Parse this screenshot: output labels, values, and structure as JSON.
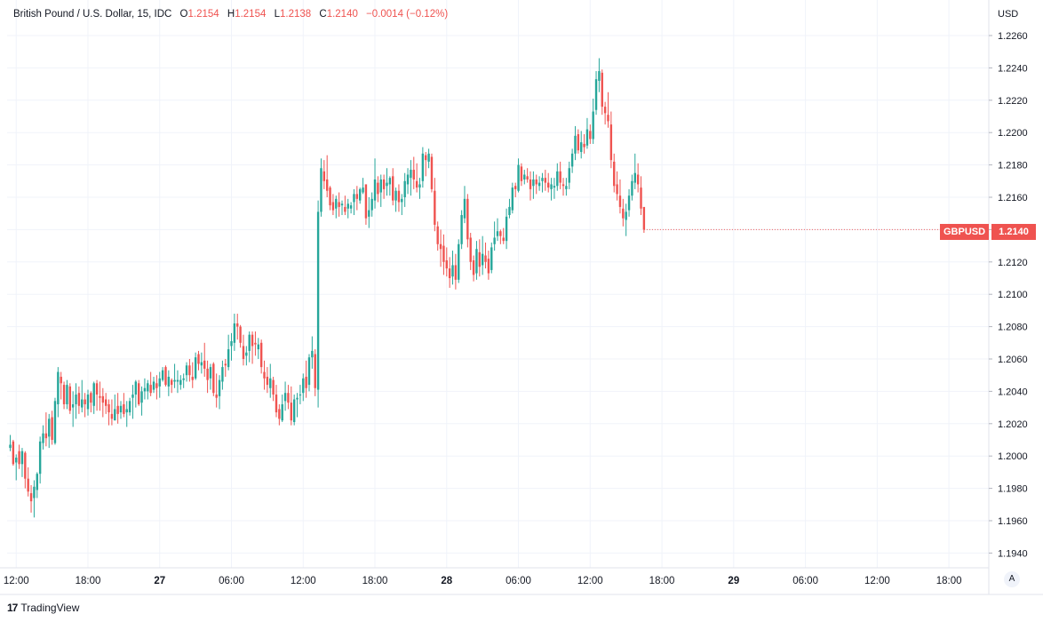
{
  "legend": {
    "title": "British Pound / U.S. Dollar, 15, IDC",
    "open_label": "O",
    "open_value": "1.2154",
    "high_label": "H",
    "high_value": "1.2154",
    "low_label": "L",
    "low_value": "1.2138",
    "close_label": "C",
    "close_value": "1.2140",
    "change": "−0.0014 (−0.12%)"
  },
  "axis": {
    "currency": "USD"
  },
  "price_tag": {
    "symbol": "GBPUSD",
    "price": "1.2140"
  },
  "auto_scale_label": "A",
  "brand": {
    "logo": "17",
    "name": "TradingView"
  },
  "colors": {
    "up": "#26a69a",
    "down": "#ef5350",
    "grid": "#f0f3fa",
    "text": "#131722"
  },
  "chart_data": {
    "type": "candlestick",
    "title": "British Pound / U.S. Dollar, 15, IDC",
    "ylim": [
      1.193,
      1.227
    ],
    "y_ticks": [
      "1.2260",
      "1.2240",
      "1.2220",
      "1.2200",
      "1.2180",
      "1.2160",
      "1.2140",
      "1.2120",
      "1.2100",
      "1.2080",
      "1.2060",
      "1.2040",
      "1.2020",
      "1.2000",
      "1.1980",
      "1.1960",
      "1.1940"
    ],
    "x_ticks": [
      {
        "label": "12:00",
        "bold": false,
        "idx": 2
      },
      {
        "label": "18:00",
        "bold": false,
        "idx": 26
      },
      {
        "label": "27",
        "bold": true,
        "idx": 50
      },
      {
        "label": "06:00",
        "bold": false,
        "idx": 74
      },
      {
        "label": "12:00",
        "bold": false,
        "idx": 98
      },
      {
        "label": "18:00",
        "bold": false,
        "idx": 122
      },
      {
        "label": "28",
        "bold": true,
        "idx": 146
      },
      {
        "label": "06:00",
        "bold": false,
        "idx": 170
      },
      {
        "label": "12:00",
        "bold": false,
        "idx": 194
      },
      {
        "label": "18:00",
        "bold": false,
        "idx": 218
      },
      {
        "label": "29",
        "bold": true,
        "idx": 242
      },
      {
        "label": "06:00",
        "bold": false,
        "idx": 266
      },
      {
        "label": "12:00",
        "bold": false,
        "idx": 290
      },
      {
        "label": "18:00",
        "bold": false,
        "idx": 314
      }
    ],
    "last_price": 1.214,
    "candles": [
      [
        1.2005,
        1.2013,
        1.2003,
        1.2007
      ],
      [
        1.2009,
        1.201,
        1.1994,
        1.1995
      ],
      [
        1.1996,
        1.2001,
        1.1985,
        1.1999
      ],
      [
        1.2003,
        1.2007,
        1.1992,
        1.1995
      ],
      [
        1.1995,
        1.2005,
        1.1987,
        1.2003
      ],
      [
        1.2002,
        1.2003,
        1.198,
        1.1986
      ],
      [
        1.1986,
        1.1993,
        1.1975,
        1.1978
      ],
      [
        1.1977,
        1.1982,
        1.1965,
        1.1972
      ],
      [
        1.1974,
        1.1985,
        1.1962,
        1.1981
      ],
      [
        1.1979,
        1.199,
        1.1974,
        1.1989
      ],
      [
        1.1989,
        1.2012,
        1.1983,
        1.2009
      ],
      [
        1.2008,
        1.2019,
        1.2004,
        1.2014
      ],
      [
        1.2014,
        1.2027,
        1.2006,
        1.2011
      ],
      [
        1.2012,
        1.2026,
        1.2005,
        1.2023
      ],
      [
        1.2024,
        1.2028,
        1.2007,
        1.201
      ],
      [
        1.2008,
        1.2036,
        1.2007,
        1.2034
      ],
      [
        1.2032,
        1.2055,
        1.2024,
        1.2052
      ],
      [
        1.2049,
        1.2052,
        1.2035,
        1.2045
      ],
      [
        1.2044,
        1.2046,
        1.2029,
        1.2032
      ],
      [
        1.2032,
        1.2047,
        1.2029,
        1.2044
      ],
      [
        1.2043,
        1.2045,
        1.2026,
        1.2028
      ],
      [
        1.203,
        1.204,
        1.2018,
        1.2032
      ],
      [
        1.2032,
        1.2045,
        1.2023,
        1.2038
      ],
      [
        1.2039,
        1.2043,
        1.2026,
        1.2031
      ],
      [
        1.203,
        1.2047,
        1.2027,
        1.2035
      ],
      [
        1.2035,
        1.2039,
        1.2024,
        1.2032
      ],
      [
        1.2029,
        1.2041,
        1.2025,
        1.2038
      ],
      [
        1.2039,
        1.204,
        1.2027,
        1.2033
      ],
      [
        1.2031,
        1.2046,
        1.2026,
        1.2045
      ],
      [
        1.2045,
        1.2047,
        1.2028,
        1.2038
      ],
      [
        1.2037,
        1.2046,
        1.2028,
        1.2036
      ],
      [
        1.2037,
        1.2042,
        1.2024,
        1.2033
      ],
      [
        1.2035,
        1.2039,
        1.2026,
        1.2031
      ],
      [
        1.2032,
        1.2035,
        1.2019,
        1.2027
      ],
      [
        1.2026,
        1.2035,
        1.2019,
        1.2023
      ],
      [
        1.2022,
        1.2038,
        1.2022,
        1.2029
      ],
      [
        1.2031,
        1.2039,
        1.202,
        1.2026
      ],
      [
        1.2027,
        1.2034,
        1.2023,
        1.2031
      ],
      [
        1.2032,
        1.2039,
        1.2024,
        1.2026
      ],
      [
        1.2027,
        1.2034,
        1.2018,
        1.2029
      ],
      [
        1.2027,
        1.2036,
        1.2025,
        1.2034
      ],
      [
        1.2036,
        1.2044,
        1.2023,
        1.2038
      ],
      [
        1.2038,
        1.2047,
        1.203,
        1.2046
      ],
      [
        1.2045,
        1.2047,
        1.2031,
        1.2032
      ],
      [
        1.2033,
        1.2043,
        1.2025,
        1.204
      ],
      [
        1.204,
        1.2048,
        1.2035,
        1.2042
      ],
      [
        1.204,
        1.2047,
        1.2035,
        1.2045
      ],
      [
        1.2044,
        1.2052,
        1.2037,
        1.2039
      ],
      [
        1.2041,
        1.2049,
        1.2039,
        1.2046
      ],
      [
        1.2045,
        1.205,
        1.2035,
        1.2042
      ],
      [
        1.2043,
        1.2052,
        1.2036,
        1.2048
      ],
      [
        1.2047,
        1.2055,
        1.2046,
        1.2053
      ],
      [
        1.2055,
        1.2056,
        1.2043,
        1.2044
      ],
      [
        1.2043,
        1.2053,
        1.2037,
        1.2049
      ],
      [
        1.2047,
        1.2048,
        1.2039,
        1.2044
      ],
      [
        1.2046,
        1.2057,
        1.2042,
        1.2047
      ],
      [
        1.2046,
        1.2053,
        1.2039,
        1.2047
      ],
      [
        1.2044,
        1.205,
        1.2041,
        1.2047
      ],
      [
        1.2047,
        1.2051,
        1.2042,
        1.2048
      ],
      [
        1.205,
        1.2058,
        1.2046,
        1.2056
      ],
      [
        1.2056,
        1.206,
        1.2046,
        1.205
      ],
      [
        1.2049,
        1.2058,
        1.2042,
        1.2047
      ],
      [
        1.2048,
        1.2064,
        1.2047,
        1.2061
      ],
      [
        1.2063,
        1.2065,
        1.2053,
        1.2057
      ],
      [
        1.2056,
        1.2064,
        1.2051,
        1.2058
      ],
      [
        1.2059,
        1.207,
        1.2049,
        1.2054
      ],
      [
        1.2054,
        1.2059,
        1.2039,
        1.2047
      ],
      [
        1.2048,
        1.2057,
        1.2041,
        1.2055
      ],
      [
        1.2057,
        1.2058,
        1.2037,
        1.2039
      ],
      [
        1.2038,
        1.2051,
        1.203,
        1.2036
      ],
      [
        1.2037,
        1.205,
        1.2029,
        1.2047
      ],
      [
        1.2046,
        1.2059,
        1.2041,
        1.2055
      ],
      [
        1.2057,
        1.206,
        1.2049,
        1.2056
      ],
      [
        1.2055,
        1.2075,
        1.2053,
        1.2066
      ],
      [
        1.2068,
        1.2076,
        1.2059,
        1.2071
      ],
      [
        1.207,
        1.2088,
        1.2065,
        1.2082
      ],
      [
        1.2082,
        1.2088,
        1.2072,
        1.208
      ],
      [
        1.208,
        1.2081,
        1.2067,
        1.207
      ],
      [
        1.2068,
        1.2075,
        1.2056,
        1.206
      ],
      [
        1.2062,
        1.2068,
        1.2056,
        1.2064
      ],
      [
        1.2065,
        1.2077,
        1.2058,
        1.2075
      ],
      [
        1.2075,
        1.2077,
        1.2057,
        1.2068
      ],
      [
        1.207,
        1.2077,
        1.2062,
        1.2069
      ],
      [
        1.2066,
        1.2073,
        1.206,
        1.2069
      ],
      [
        1.207,
        1.2072,
        1.2051,
        1.2055
      ],
      [
        1.2052,
        1.2059,
        1.2041,
        1.2048
      ],
      [
        1.2049,
        1.2055,
        1.2039,
        1.2044
      ],
      [
        1.2042,
        1.2057,
        1.2036,
        1.2048
      ],
      [
        1.2047,
        1.2049,
        1.2034,
        1.2038
      ],
      [
        1.2038,
        1.2044,
        1.2024,
        1.2027
      ],
      [
        1.2029,
        1.2032,
        1.2019,
        1.2023
      ],
      [
        1.2022,
        1.2038,
        1.2021,
        1.2032
      ],
      [
        1.2034,
        1.2046,
        1.2028,
        1.2039
      ],
      [
        1.2039,
        1.2044,
        1.2029,
        1.2033
      ],
      [
        1.2033,
        1.2043,
        1.2019,
        1.2022
      ],
      [
        1.2021,
        1.2038,
        1.2019,
        1.2035
      ],
      [
        1.2035,
        1.2039,
        1.2024,
        1.2036
      ],
      [
        1.2038,
        1.2044,
        1.2032,
        1.2038
      ],
      [
        1.2039,
        1.2051,
        1.2034,
        1.2048
      ],
      [
        1.2049,
        1.2059,
        1.2036,
        1.2042
      ],
      [
        1.2044,
        1.2063,
        1.204,
        1.2061
      ],
      [
        1.2061,
        1.2074,
        1.2054,
        1.2065
      ],
      [
        1.2063,
        1.2066,
        1.2037,
        1.2042
      ],
      [
        1.2041,
        1.2158,
        1.203,
        1.2151
      ],
      [
        1.2151,
        1.2184,
        1.2148,
        1.2178
      ],
      [
        1.2176,
        1.2183,
        1.2165,
        1.217
      ],
      [
        1.2171,
        1.2186,
        1.216,
        1.2164
      ],
      [
        1.2166,
        1.2167,
        1.2152,
        1.2155
      ],
      [
        1.2157,
        1.2162,
        1.2149,
        1.2152
      ],
      [
        1.2153,
        1.2161,
        1.2147,
        1.2159
      ],
      [
        1.2157,
        1.2163,
        1.2148,
        1.2154
      ],
      [
        1.2155,
        1.2158,
        1.2149,
        1.2156
      ],
      [
        1.2154,
        1.2161,
        1.2149,
        1.2151
      ],
      [
        1.2153,
        1.2159,
        1.2147,
        1.2156
      ],
      [
        1.2153,
        1.2157,
        1.215,
        1.2155
      ],
      [
        1.2157,
        1.2165,
        1.2149,
        1.2162
      ],
      [
        1.2162,
        1.2167,
        1.2152,
        1.2159
      ],
      [
        1.2158,
        1.2166,
        1.2156,
        1.2165
      ],
      [
        1.2163,
        1.2172,
        1.2162,
        1.2166
      ],
      [
        1.2168,
        1.2168,
        1.2143,
        1.2147
      ],
      [
        1.2148,
        1.216,
        1.2141,
        1.2152
      ],
      [
        1.2152,
        1.2163,
        1.2148,
        1.2159
      ],
      [
        1.2158,
        1.2184,
        1.2153,
        1.2171
      ],
      [
        1.2169,
        1.2173,
        1.2157,
        1.2162
      ],
      [
        1.2163,
        1.2174,
        1.2154,
        1.2171
      ],
      [
        1.2171,
        1.2174,
        1.2159,
        1.2165
      ],
      [
        1.2167,
        1.2178,
        1.2161,
        1.2169
      ],
      [
        1.2168,
        1.2173,
        1.2161,
        1.2172
      ],
      [
        1.2173,
        1.2178,
        1.2155,
        1.2158
      ],
      [
        1.2158,
        1.2166,
        1.2151,
        1.2164
      ],
      [
        1.2164,
        1.2168,
        1.2151,
        1.2157
      ],
      [
        1.2157,
        1.2162,
        1.2149,
        1.2159
      ],
      [
        1.216,
        1.2175,
        1.2154,
        1.217
      ],
      [
        1.2168,
        1.2178,
        1.2162,
        1.2174
      ],
      [
        1.2172,
        1.2183,
        1.2161,
        1.2177
      ],
      [
        1.2177,
        1.2185,
        1.2165,
        1.2171
      ],
      [
        1.217,
        1.2181,
        1.2163,
        1.2166
      ],
      [
        1.2166,
        1.2172,
        1.2159,
        1.2168
      ],
      [
        1.217,
        1.2191,
        1.2166,
        1.2187
      ],
      [
        1.2186,
        1.2188,
        1.2173,
        1.2183
      ],
      [
        1.2182,
        1.219,
        1.2178,
        1.2187
      ],
      [
        1.2185,
        1.2187,
        1.2163,
        1.2165
      ],
      [
        1.2164,
        1.2172,
        1.2139,
        1.2143
      ],
      [
        1.2142,
        1.2145,
        1.2127,
        1.2131
      ],
      [
        1.2131,
        1.214,
        1.2117,
        1.2128
      ],
      [
        1.213,
        1.2137,
        1.2112,
        1.212
      ],
      [
        1.2121,
        1.2129,
        1.2111,
        1.2116
      ],
      [
        1.2116,
        1.2123,
        1.2104,
        1.211
      ],
      [
        1.2111,
        1.2127,
        1.2106,
        1.2118
      ],
      [
        1.2118,
        1.2125,
        1.2103,
        1.2109
      ],
      [
        1.2109,
        1.2134,
        1.2107,
        1.2131
      ],
      [
        1.2131,
        1.2152,
        1.2128,
        1.2149
      ],
      [
        1.2147,
        1.2167,
        1.2144,
        1.2159
      ],
      [
        1.2159,
        1.2162,
        1.2129,
        1.2134
      ],
      [
        1.2135,
        1.2138,
        1.2115,
        1.212
      ],
      [
        1.2121,
        1.2124,
        1.2108,
        1.2112
      ],
      [
        1.2113,
        1.2133,
        1.2109,
        1.2128
      ],
      [
        1.2126,
        1.2134,
        1.2111,
        1.2117
      ],
      [
        1.2118,
        1.2136,
        1.2112,
        1.2125
      ],
      [
        1.2124,
        1.2132,
        1.2116,
        1.212
      ],
      [
        1.2122,
        1.2127,
        1.2109,
        1.2113
      ],
      [
        1.2115,
        1.2132,
        1.2113,
        1.2129
      ],
      [
        1.2131,
        1.2145,
        1.2127,
        1.2135
      ],
      [
        1.2136,
        1.2147,
        1.2133,
        1.2139
      ],
      [
        1.2139,
        1.214,
        1.2131,
        1.2136
      ],
      [
        1.2135,
        1.2141,
        1.2131,
        1.2133
      ],
      [
        1.2133,
        1.2153,
        1.2128,
        1.2148
      ],
      [
        1.2149,
        1.2159,
        1.2147,
        1.2154
      ],
      [
        1.2152,
        1.2169,
        1.215,
        1.2166
      ],
      [
        1.2167,
        1.2169,
        1.216,
        1.2165
      ],
      [
        1.2164,
        1.2184,
        1.2163,
        1.218
      ],
      [
        1.2179,
        1.2181,
        1.2167,
        1.217
      ],
      [
        1.2171,
        1.2177,
        1.2168,
        1.2174
      ],
      [
        1.2173,
        1.2178,
        1.2169,
        1.2171
      ],
      [
        1.2171,
        1.2176,
        1.2158,
        1.2165
      ],
      [
        1.2167,
        1.2176,
        1.2159,
        1.2171
      ],
      [
        1.2171,
        1.2174,
        1.2162,
        1.2168
      ],
      [
        1.2167,
        1.2173,
        1.2164,
        1.2169
      ],
      [
        1.217,
        1.2175,
        1.2163,
        1.2172
      ],
      [
        1.2172,
        1.2177,
        1.2164,
        1.2169
      ],
      [
        1.2169,
        1.2175,
        1.2163,
        1.2166
      ],
      [
        1.2165,
        1.2172,
        1.2158,
        1.2168
      ],
      [
        1.2166,
        1.2172,
        1.2159,
        1.2167
      ],
      [
        1.2167,
        1.2181,
        1.2164,
        1.2176
      ],
      [
        1.2176,
        1.2182,
        1.2165,
        1.2169
      ],
      [
        1.2168,
        1.2172,
        1.2161,
        1.2167
      ],
      [
        1.2165,
        1.2172,
        1.2161,
        1.2167
      ],
      [
        1.2169,
        1.2182,
        1.2165,
        1.2178
      ],
      [
        1.2179,
        1.219,
        1.2175,
        1.2187
      ],
      [
        1.2187,
        1.2204,
        1.2183,
        1.2198
      ],
      [
        1.2199,
        1.2202,
        1.2187,
        1.2189
      ],
      [
        1.2188,
        1.2201,
        1.2184,
        1.2194
      ],
      [
        1.2193,
        1.2199,
        1.2187,
        1.2191
      ],
      [
        1.2192,
        1.2209,
        1.219,
        1.2202
      ],
      [
        1.2201,
        1.2205,
        1.2193,
        1.2196
      ],
      [
        1.2196,
        1.2221,
        1.2193,
        1.2213
      ],
      [
        1.2214,
        1.2238,
        1.2211,
        1.2233
      ],
      [
        1.2232,
        1.2246,
        1.2225,
        1.2238
      ],
      [
        1.2237,
        1.2239,
        1.2211,
        1.2216
      ],
      [
        1.2216,
        1.2219,
        1.2205,
        1.2212
      ],
      [
        1.2211,
        1.2225,
        1.2203,
        1.2207
      ],
      [
        1.2205,
        1.2213,
        1.2178,
        1.2183
      ],
      [
        1.2182,
        1.2187,
        1.2163,
        1.2167
      ],
      [
        1.2168,
        1.2176,
        1.2158,
        1.2162
      ],
      [
        1.2161,
        1.2171,
        1.215,
        1.2154
      ],
      [
        1.2153,
        1.2159,
        1.2142,
        1.2147
      ],
      [
        1.2146,
        1.2156,
        1.2136,
        1.2151
      ],
      [
        1.2152,
        1.2165,
        1.2148,
        1.2161
      ],
      [
        1.2161,
        1.2174,
        1.2158,
        1.217
      ],
      [
        1.2169,
        1.2187,
        1.2165,
        1.2175
      ],
      [
        1.2174,
        1.2181,
        1.2163,
        1.2168
      ],
      [
        1.2166,
        1.2173,
        1.2149,
        1.2153
      ],
      [
        1.2154,
        1.2154,
        1.2138,
        1.214
      ]
    ]
  }
}
